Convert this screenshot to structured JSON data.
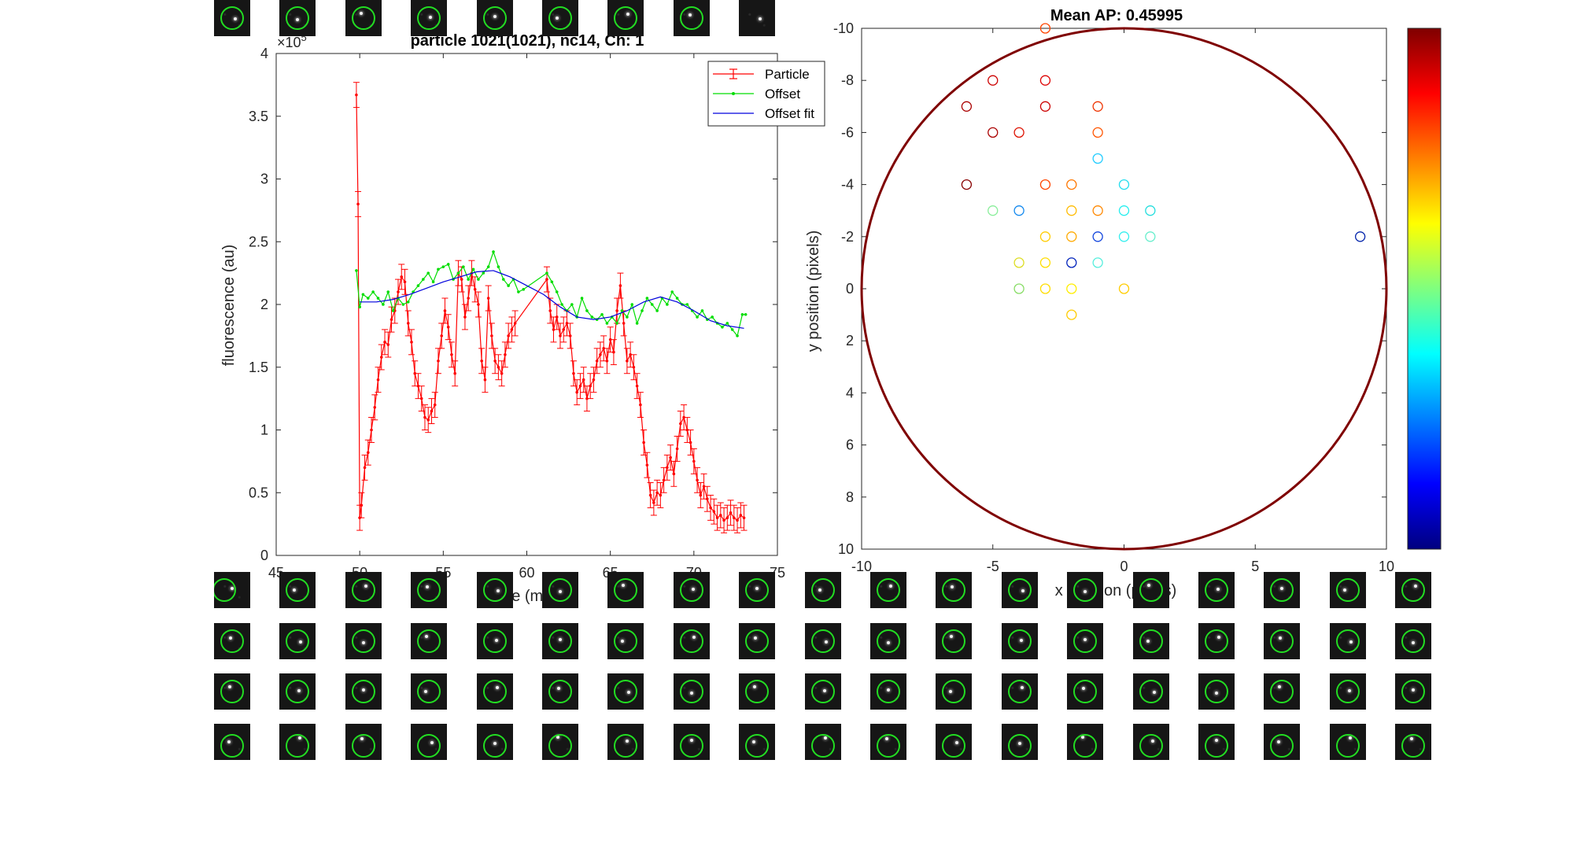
{
  "chart_data": [
    {
      "type": "line",
      "title": "particle 1021(1021), nc14, Ch: 1",
      "xlabel": "time (min)",
      "ylabel": "fluorescence (au)",
      "y_exponent_label": "×10",
      "y_exponent_power": "5",
      "xlim": [
        45,
        75
      ],
      "ylim": [
        0,
        4
      ],
      "xticks": [
        "45",
        "50",
        "55",
        "60",
        "65",
        "70",
        "75"
      ],
      "yticks": [
        "0",
        "0.5",
        "1",
        "1.5",
        "2",
        "2.5",
        "3",
        "3.5",
        "4"
      ],
      "legend": {
        "placement": "top-right",
        "entries": [
          "Particle",
          "Offset",
          "Offset fit"
        ]
      },
      "series": [
        {
          "name": "Particle",
          "color": "#ff0000",
          "x": [
            49.8,
            49.9,
            50.0,
            50.1,
            50.3,
            50.5,
            50.7,
            50.9,
            51.1,
            51.3,
            51.5,
            51.7,
            51.9,
            52.1,
            52.3,
            52.5,
            52.7,
            52.9,
            53.1,
            53.3,
            53.5,
            53.7,
            53.9,
            54.1,
            54.3,
            54.5,
            54.7,
            54.9,
            55.1,
            55.3,
            55.5,
            55.7,
            55.9,
            56.1,
            56.3,
            56.5,
            56.7,
            56.9,
            57.1,
            57.3,
            57.5,
            57.7,
            57.9,
            58.1,
            58.3,
            58.5,
            58.7,
            58.9,
            59.1,
            59.3,
            61.2,
            61.4,
            61.6,
            61.8,
            62.0,
            62.2,
            62.4,
            62.6,
            62.8,
            63.0,
            63.2,
            63.4,
            63.6,
            63.8,
            64.0,
            64.2,
            64.4,
            64.6,
            64.8,
            65.0,
            65.2,
            65.4,
            65.6,
            65.8,
            66.0,
            66.2,
            66.4,
            66.6,
            66.8,
            67.0,
            67.2,
            67.4,
            67.6,
            67.8,
            68.0,
            68.2,
            68.4,
            68.6,
            68.8,
            69.0,
            69.2,
            69.4,
            69.6,
            69.8,
            70.0,
            70.2,
            70.4,
            70.6,
            70.8,
            71.0,
            71.2,
            71.4,
            71.6,
            71.8,
            72.0,
            72.2,
            72.4,
            72.6,
            72.8,
            73.0
          ],
          "y": [
            3.67,
            2.8,
            0.3,
            0.4,
            0.7,
            0.82,
            1.0,
            1.18,
            1.4,
            1.58,
            1.7,
            1.68,
            1.88,
            1.95,
            2.1,
            2.22,
            2.18,
            1.85,
            1.7,
            1.45,
            1.35,
            1.25,
            1.1,
            1.08,
            1.15,
            1.2,
            1.55,
            1.75,
            1.95,
            1.82,
            1.6,
            1.45,
            2.25,
            2.2,
            1.9,
            2.05,
            2.25,
            2.12,
            2.0,
            1.55,
            1.4,
            2.05,
            1.75,
            1.55,
            1.5,
            1.45,
            1.6,
            1.75,
            1.8,
            1.85,
            2.2,
            1.95,
            1.8,
            1.9,
            1.75,
            1.8,
            1.85,
            1.75,
            1.45,
            1.3,
            1.35,
            1.4,
            1.25,
            1.35,
            1.4,
            1.55,
            1.6,
            1.65,
            1.55,
            1.72,
            1.62,
            1.95,
            2.15,
            1.85,
            1.55,
            1.6,
            1.5,
            1.35,
            1.2,
            0.9,
            0.72,
            0.48,
            0.42,
            0.5,
            0.48,
            0.6,
            0.7,
            0.78,
            0.65,
            0.85,
            1.05,
            1.1,
            1.0,
            0.9,
            0.75,
            0.6,
            0.48,
            0.55,
            0.45,
            0.38,
            0.35,
            0.3,
            0.32,
            0.28,
            0.3,
            0.34,
            0.3,
            0.28,
            0.32,
            0.3
          ],
          "err": 0.1
        },
        {
          "name": "Offset",
          "color": "#00dd00",
          "x": [
            49.8,
            50.0,
            50.2,
            50.5,
            50.8,
            51.1,
            51.4,
            51.7,
            52.0,
            52.3,
            52.6,
            52.9,
            53.2,
            53.5,
            53.8,
            54.1,
            54.4,
            54.7,
            55.0,
            55.3,
            55.6,
            55.9,
            56.2,
            56.5,
            56.8,
            57.1,
            57.4,
            57.7,
            58.0,
            58.3,
            58.6,
            58.9,
            59.2,
            59.5,
            59.8,
            61.2,
            61.5,
            61.8,
            62.1,
            62.4,
            62.7,
            63.0,
            63.3,
            63.6,
            63.9,
            64.2,
            64.5,
            64.8,
            65.1,
            65.4,
            65.7,
            66.0,
            66.3,
            66.6,
            66.9,
            67.2,
            67.5,
            67.8,
            68.1,
            68.4,
            68.7,
            69.0,
            69.3,
            69.6,
            69.9,
            70.2,
            70.5,
            70.8,
            71.1,
            71.4,
            71.7,
            72.0,
            72.3,
            72.6,
            72.9,
            73.1
          ],
          "y": [
            2.27,
            1.98,
            2.08,
            2.05,
            2.1,
            2.05,
            2.0,
            2.1,
            1.95,
            2.05,
            2.0,
            2.02,
            2.1,
            2.15,
            2.2,
            2.25,
            2.18,
            2.28,
            2.3,
            2.32,
            2.2,
            2.25,
            2.3,
            2.2,
            2.28,
            2.2,
            2.25,
            2.3,
            2.42,
            2.3,
            2.2,
            2.15,
            2.2,
            2.1,
            2.12,
            2.25,
            2.18,
            2.1,
            2.0,
            1.95,
            2.0,
            1.9,
            2.05,
            1.95,
            1.9,
            1.88,
            1.92,
            1.85,
            1.9,
            1.85,
            1.95,
            1.9,
            2.0,
            1.85,
            1.95,
            2.05,
            2.0,
            1.95,
            2.05,
            2.0,
            2.1,
            2.05,
            2.0,
            2.0,
            1.95,
            1.9,
            1.95,
            1.88,
            1.9,
            1.85,
            1.82,
            1.85,
            1.8,
            1.75,
            1.92,
            1.92
          ]
        },
        {
          "name": "Offset fit",
          "color": "#0000dd",
          "x": [
            50,
            51,
            52,
            53,
            54,
            55,
            56,
            57,
            58,
            59,
            60,
            61,
            62,
            63,
            64,
            65,
            66,
            67,
            68,
            69,
            70,
            71,
            72,
            73
          ],
          "y": [
            2.02,
            2.02,
            2.04,
            2.08,
            2.13,
            2.18,
            2.22,
            2.26,
            2.27,
            2.22,
            2.15,
            2.08,
            1.98,
            1.9,
            1.88,
            1.9,
            1.95,
            2.02,
            2.06,
            2.02,
            1.95,
            1.87,
            1.83,
            1.81
          ]
        }
      ]
    },
    {
      "type": "scatter",
      "title": "Mean AP: 0.45995",
      "xlabel": "x position (pixels)",
      "ylabel": "y position (pixels)",
      "xlim": [
        -10,
        10
      ],
      "ylim": [
        -10,
        10
      ],
      "y_reversed": true,
      "xticks": [
        "-10",
        "-5",
        "0",
        "5",
        "10"
      ],
      "yticks": [
        "-10",
        "-8",
        "-6",
        "-4",
        "-2",
        "0",
        "2",
        "4",
        "6",
        "8",
        "10"
      ],
      "boundary_circle": {
        "cx": 0,
        "cy": 0,
        "r": 10,
        "color": "#7f0000"
      },
      "colorbar": {
        "colors": [
          "#00007f",
          "#0000ff",
          "#007fff",
          "#00ffff",
          "#7fff7f",
          "#ffff00",
          "#ff7f00",
          "#ff0000",
          "#7f0000"
        ]
      },
      "points": [
        {
          "x": -3,
          "y": -10,
          "color": "#ff4400"
        },
        {
          "x": -5,
          "y": -8,
          "color": "#cc0000"
        },
        {
          "x": -3,
          "y": -8,
          "color": "#dd0000"
        },
        {
          "x": -6,
          "y": -7,
          "color": "#aa0000"
        },
        {
          "x": -3,
          "y": -7,
          "color": "#cc0000"
        },
        {
          "x": -1,
          "y": -7,
          "color": "#ee3300"
        },
        {
          "x": -5,
          "y": -6,
          "color": "#aa0000"
        },
        {
          "x": -4,
          "y": -6,
          "color": "#dd1100"
        },
        {
          "x": -1,
          "y": -6,
          "color": "#ff5500"
        },
        {
          "x": -1,
          "y": -5,
          "color": "#22ccff"
        },
        {
          "x": -6,
          "y": -4,
          "color": "#880000"
        },
        {
          "x": -3,
          "y": -4,
          "color": "#ff4400"
        },
        {
          "x": -2,
          "y": -4,
          "color": "#ff7700"
        },
        {
          "x": 0,
          "y": -4,
          "color": "#22ddee"
        },
        {
          "x": -5,
          "y": -3,
          "color": "#88ee99"
        },
        {
          "x": -4,
          "y": -3,
          "color": "#1188ee"
        },
        {
          "x": -2,
          "y": -3,
          "color": "#ffbb00"
        },
        {
          "x": -1,
          "y": -3,
          "color": "#ff8800"
        },
        {
          "x": 0,
          "y": -3,
          "color": "#22eeee"
        },
        {
          "x": 1,
          "y": -3,
          "color": "#22dddd"
        },
        {
          "x": -3,
          "y": -2,
          "color": "#ffcc00"
        },
        {
          "x": -2,
          "y": -2,
          "color": "#ffaa00"
        },
        {
          "x": -1,
          "y": -2,
          "color": "#1144dd"
        },
        {
          "x": 0,
          "y": -2,
          "color": "#33eeee"
        },
        {
          "x": 1,
          "y": -2,
          "color": "#66eecc"
        },
        {
          "x": 9,
          "y": -2,
          "color": "#0022aa"
        },
        {
          "x": -4,
          "y": -1,
          "color": "#dddd22"
        },
        {
          "x": -3,
          "y": -1,
          "color": "#ffdd00"
        },
        {
          "x": -2,
          "y": -1,
          "color": "#0022bb"
        },
        {
          "x": -1,
          "y": -1,
          "color": "#55eedd"
        },
        {
          "x": -4,
          "y": 0,
          "color": "#88dd66"
        },
        {
          "x": -3,
          "y": 0,
          "color": "#ffdd00"
        },
        {
          "x": -2,
          "y": 0,
          "color": "#ffee00"
        },
        {
          "x": 0,
          "y": 0,
          "color": "#ffcc00"
        },
        {
          "x": -2,
          "y": 1,
          "color": "#ffcc00"
        }
      ]
    }
  ],
  "thumbnails": {
    "ring_color": "#22dd22",
    "count": 85,
    "per_row": 19
  }
}
